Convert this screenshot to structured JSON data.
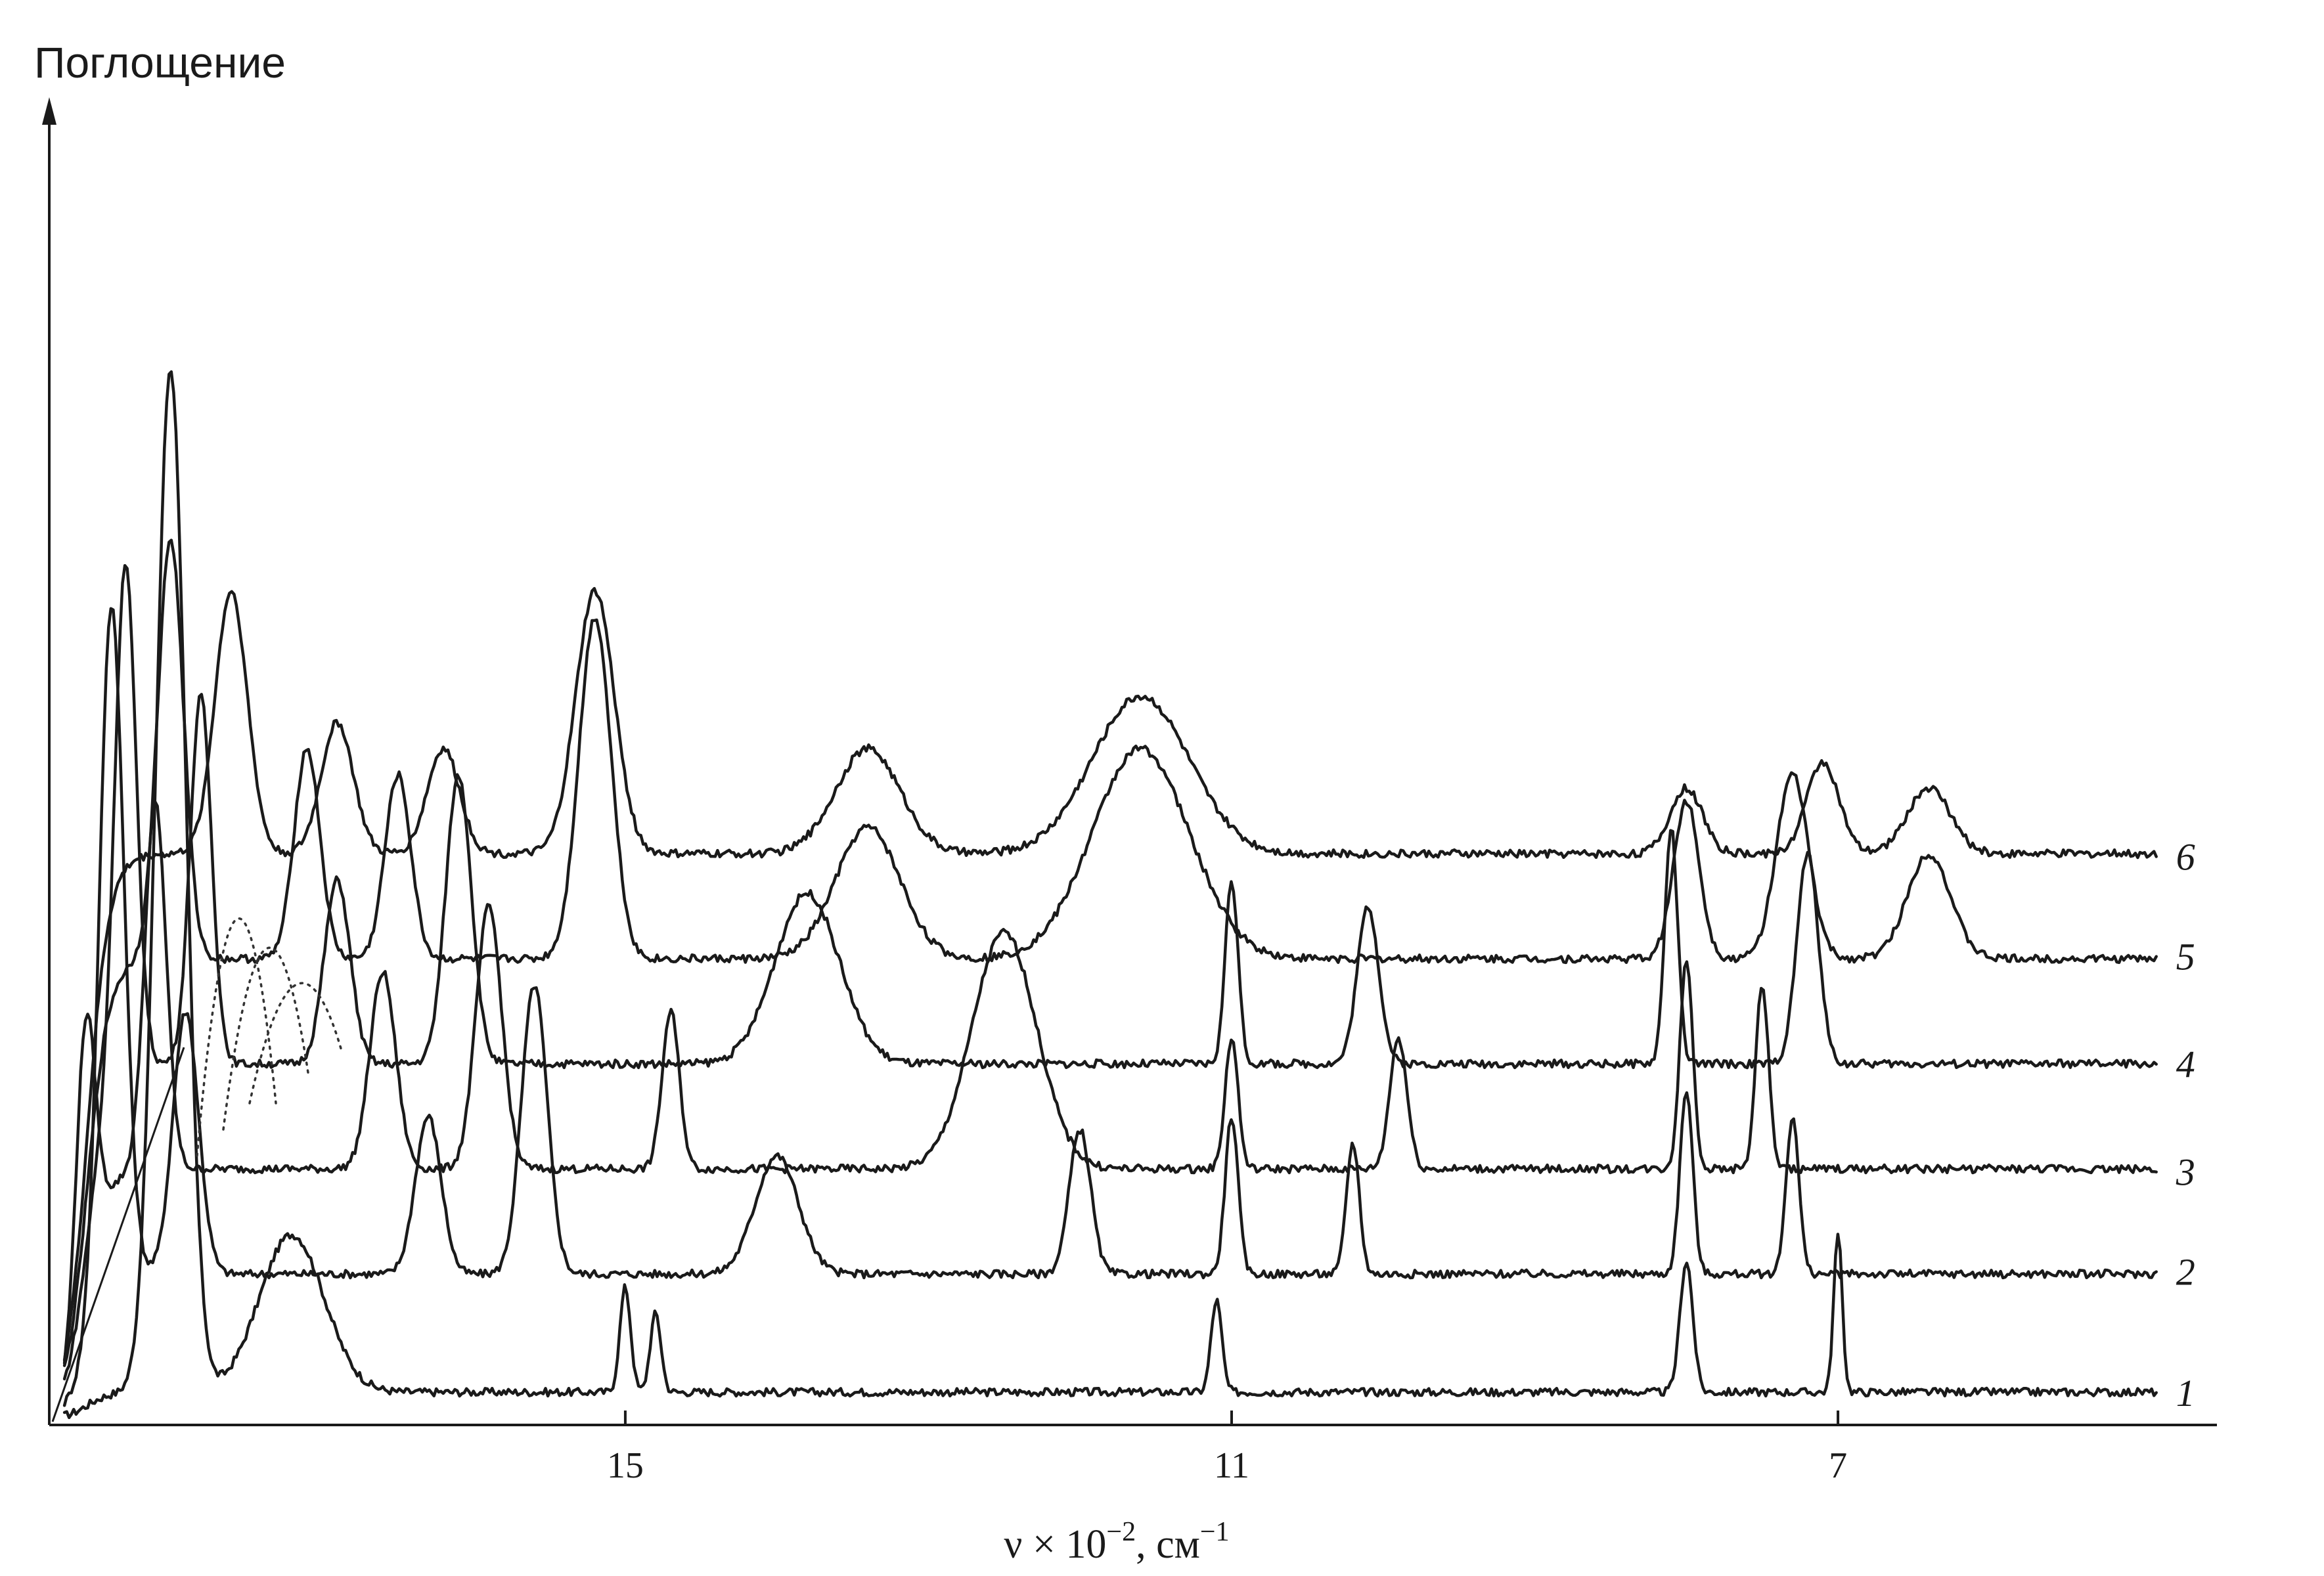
{
  "chart_data": {
    "type": "line",
    "ylabel": "Поглощение",
    "xlabel_main": "ν × 10",
    "xlabel_exp": "−2",
    "xlabel_unit": ", см",
    "xlabel_unit_exp": "−1",
    "xlim": [
      4.5,
      18.8
    ],
    "ylim": [
      0,
      1
    ],
    "x_reversed": true,
    "grid": false,
    "x_ticks": [
      15,
      11,
      7
    ],
    "x_tick_labels": [
      "15",
      "11",
      "7"
    ],
    "series": [
      {
        "name": "1",
        "offset": 0.0,
        "peaks": [
          [
            18.0,
            0.78,
            0.14
          ],
          [
            17.2,
            0.12,
            0.3
          ],
          [
            15.0,
            0.08,
            0.05
          ],
          [
            14.8,
            0.06,
            0.05
          ],
          [
            11.1,
            0.07,
            0.05
          ],
          [
            7.0,
            0.12,
            0.04
          ],
          [
            8.0,
            0.1,
            0.06
          ]
        ]
      },
      {
        "name": "2",
        "offset": 0.09,
        "peaks": [
          [
            18.4,
            0.58,
            0.12
          ],
          [
            17.9,
            0.2,
            0.12
          ],
          [
            16.3,
            0.12,
            0.12
          ],
          [
            15.6,
            0.22,
            0.12
          ],
          [
            14.0,
            0.09,
            0.2
          ],
          [
            12.0,
            0.11,
            0.1
          ],
          [
            11.0,
            0.12,
            0.06
          ],
          [
            10.2,
            0.1,
            0.06
          ],
          [
            8.0,
            0.14,
            0.06
          ],
          [
            7.3,
            0.12,
            0.06
          ]
        ]
      },
      {
        "name": "3",
        "offset": 0.17,
        "peaks": [
          [
            18.6,
            0.55,
            0.1
          ],
          [
            18.1,
            0.28,
            0.1
          ],
          [
            16.6,
            0.15,
            0.12
          ],
          [
            15.9,
            0.2,
            0.12
          ],
          [
            14.7,
            0.12,
            0.08
          ],
          [
            12.5,
            0.18,
            0.3
          ],
          [
            11.0,
            0.1,
            0.06
          ],
          [
            9.9,
            0.1,
            0.08
          ],
          [
            8.0,
            0.16,
            0.06
          ],
          [
            7.5,
            0.14,
            0.06
          ]
        ]
      },
      {
        "name": "4",
        "offset": 0.25,
        "peaks": [
          [
            18.3,
            0.4,
            0.1
          ],
          [
            17.8,
            0.28,
            0.1
          ],
          [
            16.9,
            0.14,
            0.12
          ],
          [
            16.1,
            0.22,
            0.12
          ],
          [
            13.8,
            0.13,
            0.3
          ],
          [
            11.0,
            0.14,
            0.06
          ],
          [
            10.1,
            0.12,
            0.1
          ],
          [
            8.1,
            0.18,
            0.06
          ],
          [
            7.2,
            0.16,
            0.1
          ]
        ]
      },
      {
        "name": "5",
        "offset": 0.33,
        "peaks": [
          [
            18.0,
            0.32,
            0.12
          ],
          [
            17.1,
            0.16,
            0.12
          ],
          [
            16.5,
            0.14,
            0.12
          ],
          [
            15.2,
            0.26,
            0.15
          ],
          [
            13.4,
            0.1,
            0.3
          ],
          [
            11.6,
            0.16,
            0.45
          ],
          [
            8.0,
            0.12,
            0.12
          ],
          [
            7.3,
            0.14,
            0.15
          ],
          [
            6.4,
            0.08,
            0.2
          ]
        ]
      },
      {
        "name": "6",
        "offset": 0.41,
        "peaks": [
          [
            17.6,
            0.2,
            0.15
          ],
          [
            16.9,
            0.1,
            0.15
          ],
          [
            16.2,
            0.08,
            0.15
          ],
          [
            15.2,
            0.2,
            0.18
          ],
          [
            13.4,
            0.08,
            0.3
          ],
          [
            11.6,
            0.12,
            0.45
          ],
          [
            8.0,
            0.05,
            0.15
          ],
          [
            7.1,
            0.07,
            0.15
          ],
          [
            6.4,
            0.05,
            0.2
          ]
        ]
      }
    ]
  }
}
